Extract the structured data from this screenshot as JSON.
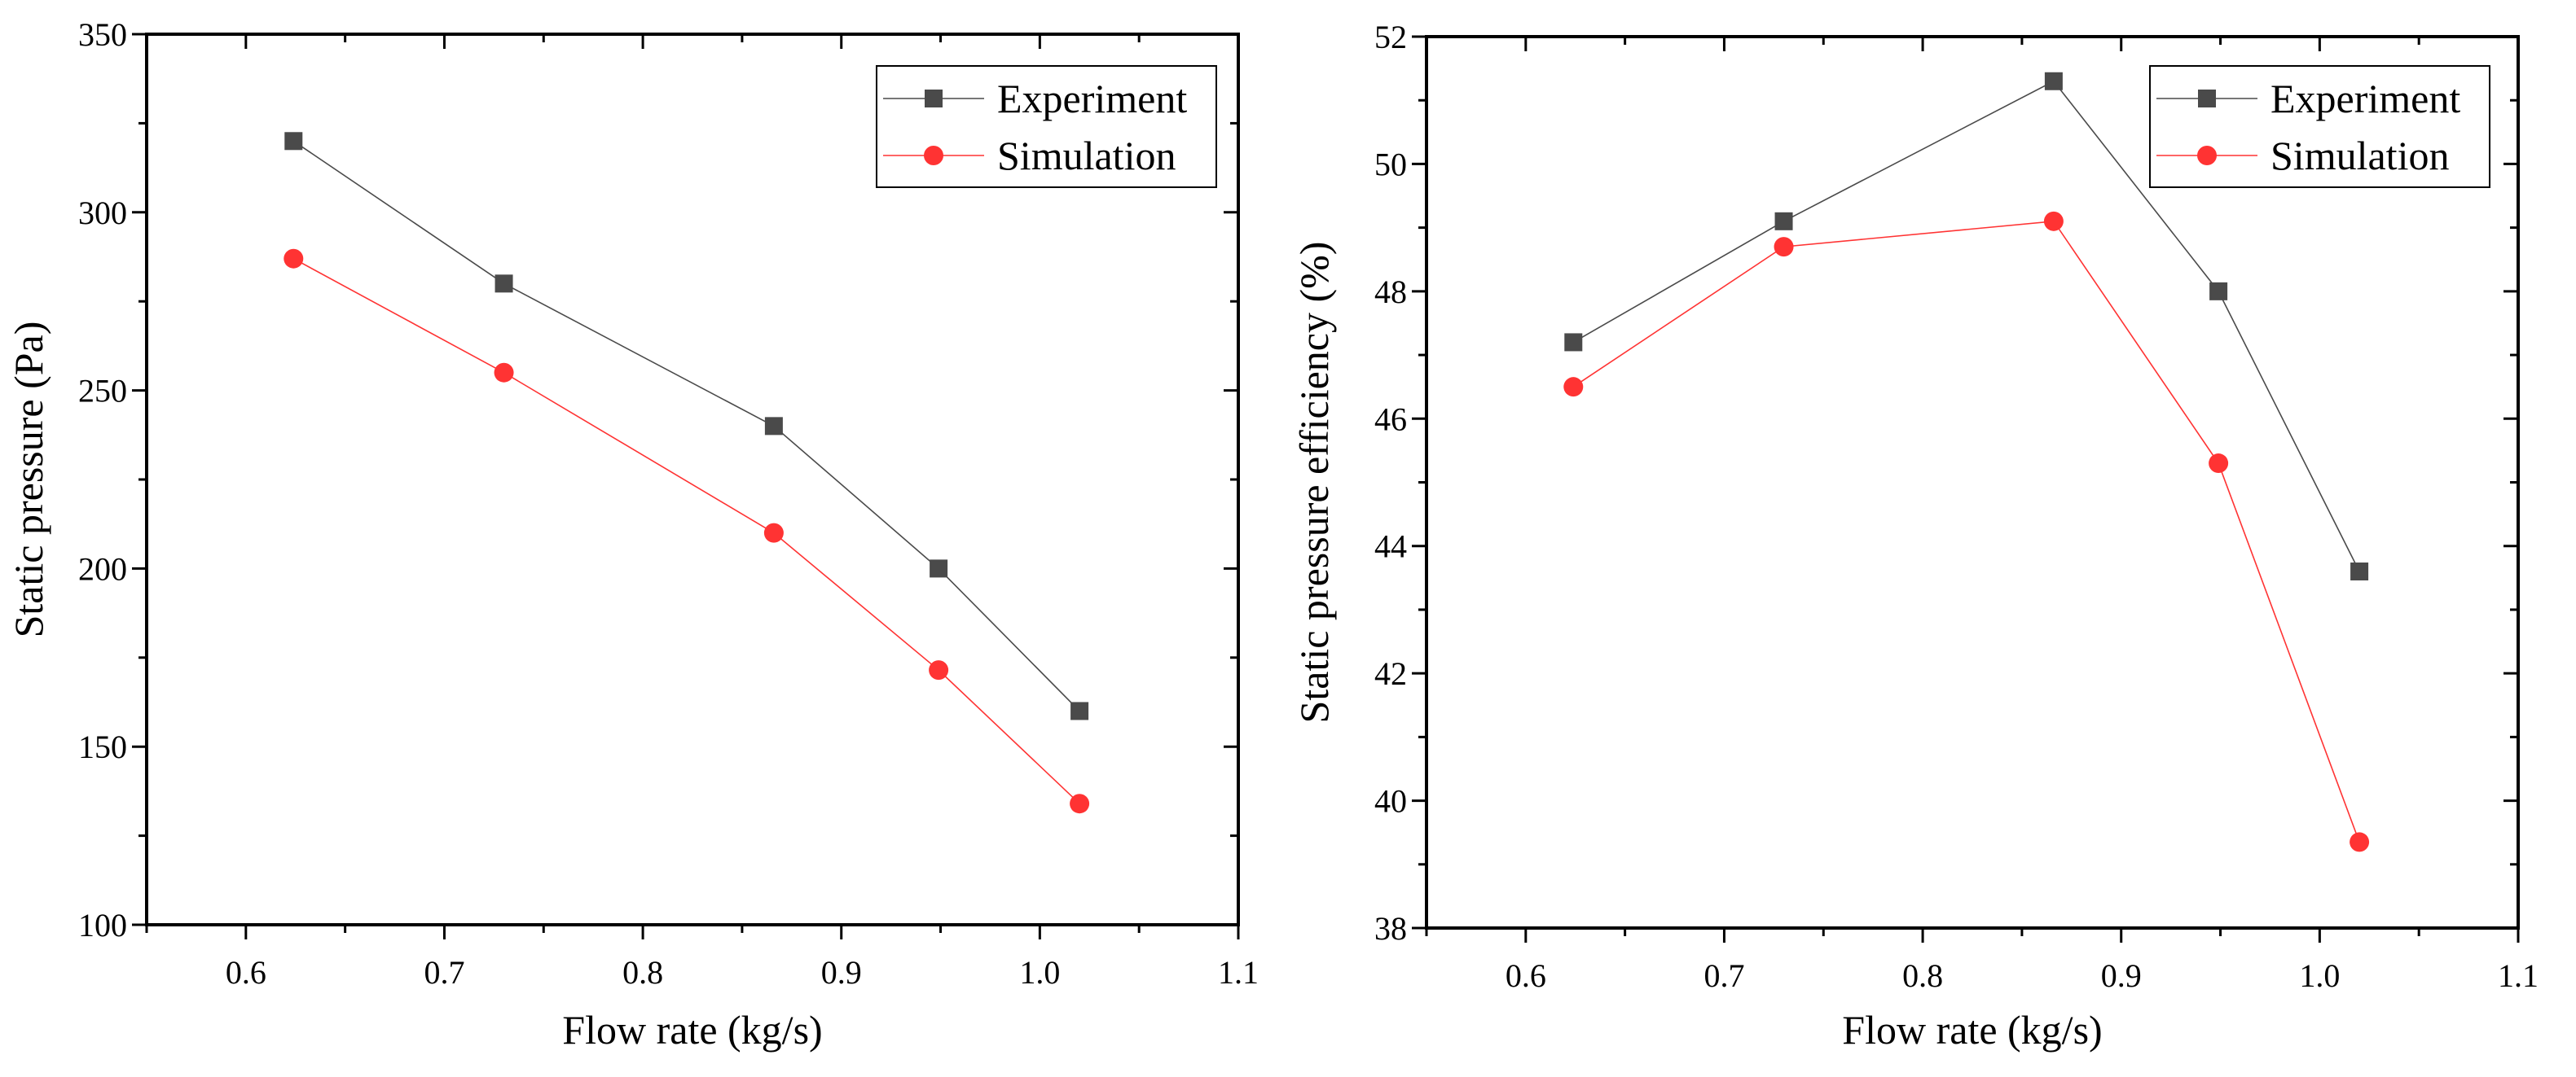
{
  "chart_data": [
    {
      "type": "line",
      "title": "",
      "xlabel": "Flow rate (kg/s)",
      "ylabel": "Static pressure (Pa)",
      "xlim": [
        0.55,
        1.1
      ],
      "ylim": [
        100,
        350
      ],
      "xticks": [
        0.6,
        0.7,
        0.8,
        0.9,
        1.0,
        1.1
      ],
      "xtick_labels": [
        "0.6",
        "0.7",
        "0.8",
        "0.9",
        "1.0",
        "1.1"
      ],
      "yticks": [
        100,
        150,
        200,
        250,
        300,
        350
      ],
      "ytick_labels": [
        "100",
        "150",
        "200",
        "250",
        "300",
        "350"
      ],
      "x_minor_step": 0.05,
      "y_minor_step": 25,
      "grid": false,
      "legend_position": "top-right",
      "x": [
        0.624,
        0.73,
        0.866,
        0.949,
        1.02
      ],
      "series": [
        {
          "name": "Experiment",
          "marker": "square",
          "color": "#4a4a4a",
          "values": [
            320,
            280,
            240,
            200,
            160
          ]
        },
        {
          "name": "Simulation",
          "marker": "circle",
          "color": "#ff3333",
          "values": [
            287,
            255,
            210,
            171.5,
            134
          ]
        }
      ]
    },
    {
      "type": "line",
      "title": "",
      "xlabel": "Flow rate (kg/s)",
      "ylabel": "Static pressure efficiency (%)",
      "xlim": [
        0.55,
        1.1
      ],
      "ylim": [
        38,
        52
      ],
      "xticks": [
        0.6,
        0.7,
        0.8,
        0.9,
        1.0,
        1.1
      ],
      "xtick_labels": [
        "0.6",
        "0.7",
        "0.8",
        "0.9",
        "1.0",
        "1.1"
      ],
      "yticks": [
        38,
        40,
        42,
        44,
        46,
        48,
        50,
        52
      ],
      "ytick_labels": [
        "38",
        "40",
        "42",
        "44",
        "46",
        "48",
        "50",
        "52"
      ],
      "x_minor_step": 0.05,
      "y_minor_step": 1,
      "grid": false,
      "legend_position": "top-right",
      "x": [
        0.624,
        0.73,
        0.866,
        0.949,
        1.02
      ],
      "series": [
        {
          "name": "Experiment",
          "marker": "square",
          "color": "#4a4a4a",
          "values": [
            47.2,
            49.1,
            51.3,
            48.0,
            43.6
          ]
        },
        {
          "name": "Simulation",
          "marker": "circle",
          "color": "#ff3333",
          "values": [
            46.5,
            48.7,
            49.1,
            45.3,
            39.35
          ]
        }
      ]
    }
  ]
}
